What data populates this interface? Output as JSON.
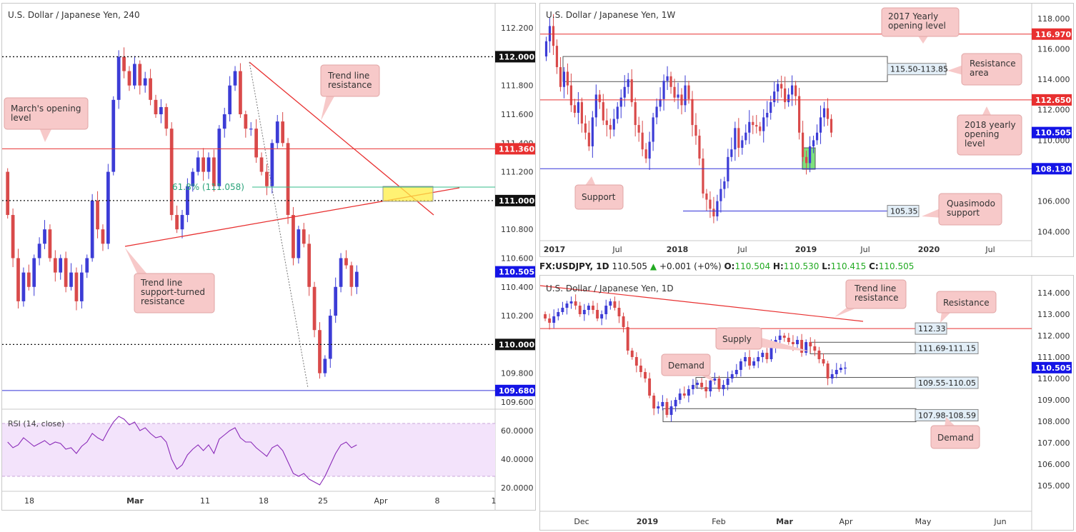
{
  "colors": {
    "bull": "#3c3cd6",
    "bear": "#d94a4a",
    "red_line": "#e83030",
    "blue_line": "#3434d8",
    "price_badge": "#1414e6",
    "red_badge": "#e83030",
    "callout_bg": "#f7c9c9",
    "zone_green": "#66dd66",
    "zone_yellow": "#ffee44",
    "rsi_band": "#f3e3fb"
  },
  "chart_data": [
    {
      "type": "candlestick",
      "title": "U.S. Dollar / Japanese Yen, 240",
      "xlabel": "",
      "ylabel": "",
      "x_ticks": [
        "18",
        "Mar",
        "11",
        "18",
        "25",
        "Apr",
        "8",
        "1"
      ],
      "y_ticks": [
        "112.200",
        "111.800",
        "111.600",
        "111.400",
        "111.200",
        "110.800",
        "110.600",
        "110.400",
        "110.200",
        "109.800",
        "109.600"
      ],
      "ylim": [
        109.56,
        112.29
      ],
      "levels": [
        {
          "value": 112.0,
          "label": "112.000",
          "style": "dotted-black"
        },
        {
          "value": 111.36,
          "label": "111.360",
          "style": "red"
        },
        {
          "value": 111.0,
          "label": "111.000",
          "style": "dotted-black"
        },
        {
          "value": 110.0,
          "label": "110.000",
          "style": "dotted-black"
        },
        {
          "value": 109.68,
          "label": "109.680",
          "style": "blue"
        }
      ],
      "last_price": {
        "value": 110.505,
        "label": "110.505"
      },
      "fib": {
        "value": 111.058,
        "label": "61.8% (111.058)"
      },
      "annotations": [
        "Trend line resistance",
        "March's opening level",
        "Trend line support-turned resistance"
      ],
      "series_close": [
        110.9,
        110.6,
        110.3,
        110.5,
        110.4,
        110.6,
        110.7,
        110.8,
        110.6,
        110.5,
        110.6,
        110.4,
        110.5,
        110.3,
        110.5,
        110.6,
        111.0,
        110.8,
        110.7,
        111.2,
        111.7,
        112.0,
        111.9,
        111.8,
        111.95,
        111.8,
        111.85,
        111.7,
        111.6,
        111.65,
        111.5,
        110.9,
        110.8,
        110.9,
        111.1,
        111.2,
        111.3,
        111.2,
        111.3,
        111.1,
        111.5,
        111.6,
        111.8,
        111.9,
        111.6,
        111.5,
        111.5,
        111.3,
        111.2,
        111.1,
        111.4,
        111.55,
        111.4,
        110.9,
        110.6,
        110.8,
        110.7,
        110.4,
        110.1,
        109.8,
        109.9,
        110.2,
        110.4,
        110.6,
        110.55,
        110.4,
        110.505
      ],
      "rsi": {
        "label": "RSI (14, close)",
        "ticks": [
          "60.0000",
          "40.0000",
          "20.0000"
        ],
        "ylim": [
          18,
          73
        ],
        "band": [
          30,
          70
        ],
        "values": [
          52,
          48,
          50,
          55,
          52,
          49,
          51,
          53,
          50,
          52,
          51,
          47,
          48,
          44,
          49,
          52,
          58,
          55,
          53,
          60,
          66,
          70,
          68,
          64,
          66,
          60,
          62,
          58,
          55,
          56,
          52,
          40,
          33,
          36,
          43,
          47,
          50,
          46,
          50,
          44,
          54,
          57,
          60,
          62,
          55,
          52,
          52,
          48,
          45,
          42,
          48,
          50,
          46,
          38,
          30,
          28,
          30,
          26,
          24,
          22,
          28,
          36,
          44,
          50,
          52,
          48,
          50
        ]
      }
    },
    {
      "type": "candlestick",
      "title": "U.S. Dollar / Japanese Yen, 1W",
      "xlabel": "",
      "ylabel": "",
      "x_ticks": [
        "2017",
        "Jul",
        "2018",
        "Jul",
        "2019",
        "Jul",
        "2020",
        "Jul"
      ],
      "y_ticks": [
        "118.000",
        "116.000",
        "114.000",
        "112.000",
        "110.000",
        "106.000",
        "104.000"
      ],
      "ylim": [
        103.5,
        118.6
      ],
      "levels": [
        {
          "value": 116.97,
          "label": "116.970",
          "style": "red"
        },
        {
          "value": 112.65,
          "label": "112.650",
          "style": "red"
        },
        {
          "value": 108.13,
          "label": "108.130",
          "style": "blue"
        },
        {
          "value": 105.35,
          "label": "105.35",
          "style": "blue"
        }
      ],
      "last_price": {
        "value": 110.505,
        "label": "110.505"
      },
      "zones": [
        {
          "label": "115.50-113.85",
          "from": 113.85,
          "to": 115.5
        }
      ],
      "annotations": [
        "2017 Yearly opening level",
        "Resistance area",
        "2018 yearly opening level",
        "Support",
        "Quasimodo support"
      ],
      "series_close": [
        116.5,
        117.5,
        116.2,
        114.8,
        113.5,
        114.5,
        113.6,
        112.3,
        111.8,
        112.5,
        111.1,
        110.5,
        109.6,
        111.5,
        113.0,
        112.5,
        111.3,
        111.0,
        110.7,
        111.4,
        112.2,
        112.8,
        113.5,
        114.0,
        112.5,
        111.0,
        110.5,
        109.4,
        108.8,
        109.9,
        111.5,
        112.2,
        112.7,
        113.9,
        114.2,
        113.5,
        112.8,
        113.0,
        112.3,
        113.6,
        112.7,
        111.0,
        110.3,
        108.8,
        106.5,
        106.1,
        105.5,
        105.0,
        106.0,
        106.8,
        107.3,
        108.9,
        109.4,
        110.8,
        109.5,
        110.0,
        110.5,
        111.2,
        111.0,
        110.9,
        110.6,
        111.5,
        111.8,
        112.5,
        113.2,
        113.7,
        113.4,
        112.5,
        113.0,
        113.6,
        112.9,
        110.5,
        108.9,
        108.5,
        109.6,
        110.0,
        110.5,
        111.5,
        112.1,
        111.4,
        110.5
      ]
    },
    {
      "type": "candlestick",
      "title": "U.S. Dollar / Japanese Yen, 1D",
      "symbol": "FX:USDJPY, 1D",
      "price": "110.505",
      "change": "+0.001 (+0%)",
      "ohlc": {
        "O": "110.504",
        "H": "110.530",
        "L": "110.415",
        "C": "110.505"
      },
      "xlabel": "",
      "ylabel": "",
      "x_ticks": [
        "Dec",
        "2019",
        "Feb",
        "Mar",
        "Apr",
        "May",
        "Jun"
      ],
      "y_ticks": [
        "114.000",
        "113.000",
        "112.000",
        "111.000",
        "110.000",
        "109.000",
        "108.000",
        "107.000",
        "106.000",
        "105.000"
      ],
      "ylim": [
        104.4,
        114.4
      ],
      "levels": [
        {
          "value": 112.33,
          "label": "112.33",
          "style": "red"
        }
      ],
      "last_price": {
        "value": 110.505,
        "label": "110.505"
      },
      "zones": [
        {
          "label": "111.69-111.15",
          "from": 111.15,
          "to": 111.69
        },
        {
          "label": "109.55-110.05",
          "from": 109.55,
          "to": 110.05
        },
        {
          "label": "107.98-108.59",
          "from": 107.98,
          "to": 108.59
        }
      ],
      "annotations": [
        "Trend line resistance",
        "Resistance",
        "Supply",
        "Demand",
        "Demand"
      ],
      "series_close": [
        112.8,
        112.6,
        112.9,
        113.1,
        113.3,
        113.5,
        113.6,
        113.4,
        113.0,
        113.2,
        113.4,
        113.2,
        112.8,
        113.0,
        113.4,
        113.6,
        113.3,
        112.9,
        112.4,
        111.3,
        111.0,
        110.6,
        110.3,
        110.0,
        109.2,
        108.6,
        108.7,
        108.9,
        108.3,
        108.7,
        109.0,
        109.3,
        109.2,
        109.5,
        109.7,
        109.8,
        109.6,
        109.4,
        109.9,
        110.0,
        109.5,
        109.7,
        110.0,
        110.2,
        110.4,
        110.8,
        111.0,
        110.6,
        110.8,
        111.0,
        111.2,
        110.9,
        111.5,
        111.8,
        112.0,
        111.9,
        111.7,
        111.6,
        111.8,
        111.2,
        111.7,
        111.5,
        111.3,
        110.9,
        110.7,
        110.0,
        110.2,
        110.4,
        110.5,
        110.505
      ]
    }
  ]
}
